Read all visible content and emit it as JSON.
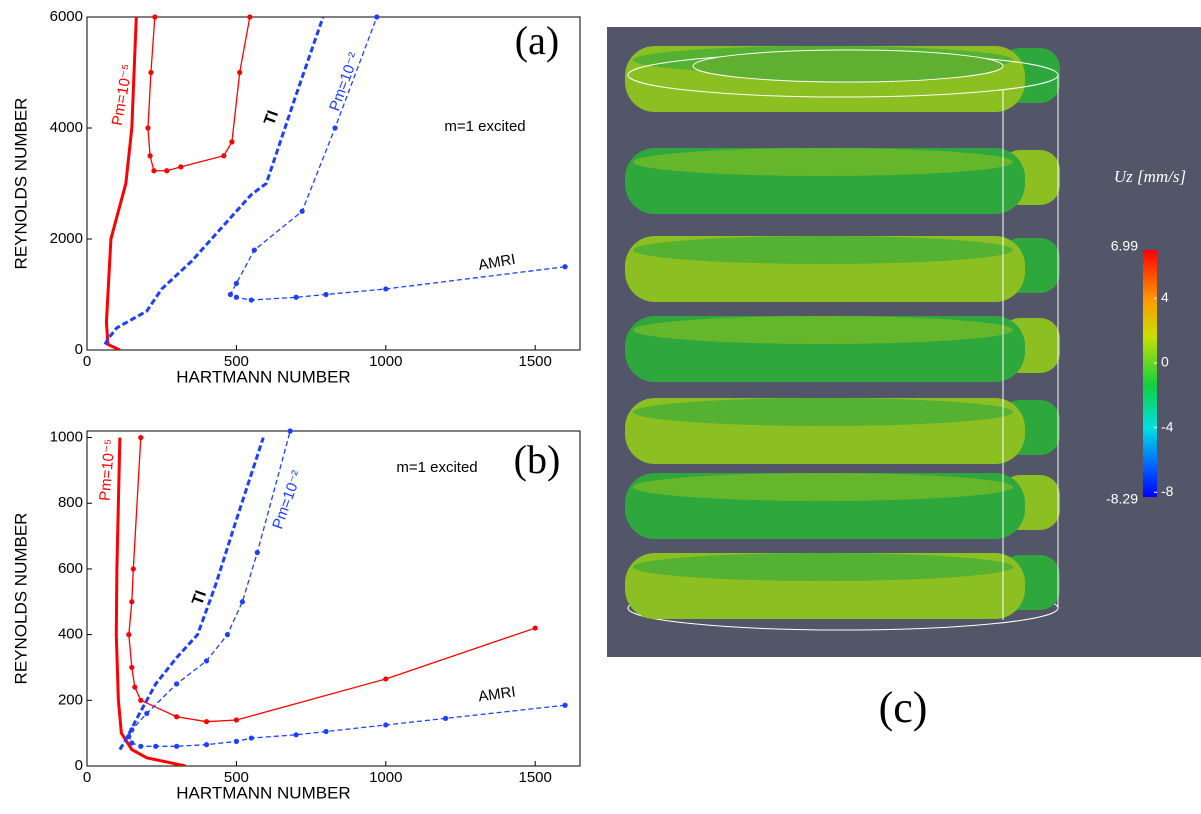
{
  "chart_data": [
    {
      "type": "line",
      "panel_label": "(a)",
      "xlabel": "HARTMANN NUMBER",
      "ylabel": "REYNOLDS NUMBER",
      "xlim": [
        0,
        1650
      ],
      "ylim": [
        0,
        6000
      ],
      "xticks": [
        0,
        500,
        1000,
        1500
      ],
      "yticks": [
        0,
        2000,
        4000,
        6000
      ],
      "annotations": [
        "m=1 excited",
        "Pm=10⁻⁵",
        "TI",
        "Pm=10⁻²",
        "AMRI"
      ],
      "series": [
        {
          "color": "#ff0000",
          "linewidth": 3,
          "dash": false,
          "marker": false,
          "x": [
            110,
            70,
            65,
            80,
            130,
            150,
            165
          ],
          "values": [
            0,
            100,
            500,
            2000,
            3000,
            4000,
            6000
          ]
        },
        {
          "color": "#ff0000",
          "linewidth": 1.3,
          "dash": false,
          "marker": true,
          "x": [
            227,
            214,
            204,
            211,
            224,
            267,
            314,
            458,
            485,
            511,
            545
          ],
          "values": [
            6000,
            5000,
            4000,
            3500,
            3230,
            3230,
            3300,
            3500,
            3750,
            5000,
            6000
          ]
        },
        {
          "color": "#1f3fff",
          "linewidth": 3,
          "dash": true,
          "marker": false,
          "x": [
            60,
            70,
            100,
            200,
            250,
            350,
            450,
            550,
            600,
            650,
            700,
            790
          ],
          "values": [
            100,
            200,
            400,
            700,
            1100,
            1600,
            2200,
            2800,
            3000,
            3800,
            4600,
            6000
          ]
        },
        {
          "color": "#1f3fff",
          "linewidth": 1.3,
          "dash": true,
          "marker": true,
          "x": [
            1600,
            1000,
            800,
            700,
            550,
            500,
            480,
            500,
            560,
            720,
            830,
            970
          ],
          "values": [
            1500,
            1100,
            1000,
            950,
            900,
            950,
            1000,
            1200,
            1800,
            2500,
            4000,
            6000
          ]
        }
      ]
    },
    {
      "type": "line",
      "panel_label": "(b)",
      "xlabel": "HARTMANN NUMBER",
      "ylabel": "REYNOLDS NUMBER",
      "xlim": [
        0,
        1650
      ],
      "ylim": [
        0,
        1020
      ],
      "xticks": [
        0,
        500,
        1000,
        1500
      ],
      "yticks": [
        0,
        200,
        400,
        600,
        800,
        1000
      ],
      "annotations": [
        "m=1 excited",
        "Pm=10⁻⁵",
        "TI",
        "Pm=10⁻²",
        "AMRI"
      ],
      "series": [
        {
          "color": "#ff0000",
          "linewidth": 3,
          "dash": false,
          "marker": false,
          "x": [
            110,
            105,
            100,
            98,
            105,
            115,
            150,
            200,
            330
          ],
          "values": [
            1000,
            800,
            600,
            400,
            200,
            100,
            50,
            25,
            0
          ]
        },
        {
          "color": "#ff0000",
          "linewidth": 1.3,
          "dash": false,
          "marker": true,
          "x": [
            180,
            155,
            150,
            140,
            150,
            160,
            180,
            300,
            400,
            500,
            1000,
            1500
          ],
          "values": [
            1000,
            600,
            500,
            400,
            300,
            240,
            200,
            150,
            135,
            140,
            265,
            420
          ]
        },
        {
          "color": "#1f3fff",
          "linewidth": 3,
          "dash": true,
          "marker": false,
          "x": [
            110,
            130,
            170,
            230,
            300,
            370,
            430,
            500,
            590
          ],
          "values": [
            50,
            80,
            150,
            250,
            330,
            400,
            550,
            750,
            1000
          ]
        },
        {
          "color": "#1f3fff",
          "linewidth": 1.3,
          "dash": true,
          "marker": true,
          "x": [
            1600,
            1200,
            1000,
            800,
            700,
            550,
            500,
            400,
            300,
            230,
            180,
            150,
            140,
            150,
            200,
            300,
            400,
            470,
            520,
            570,
            680
          ],
          "values": [
            185,
            145,
            125,
            105,
            95,
            85,
            75,
            65,
            60,
            60,
            60,
            70,
            90,
            110,
            160,
            250,
            320,
            400,
            500,
            650,
            1020
          ]
        }
      ]
    }
  ],
  "panel_c": {
    "label": "(c)",
    "colorbar": {
      "title": "Uz [mm/s]",
      "max": 6.99,
      "min": -8.29,
      "ticks": [
        4,
        0,
        -4,
        -8
      ]
    }
  }
}
